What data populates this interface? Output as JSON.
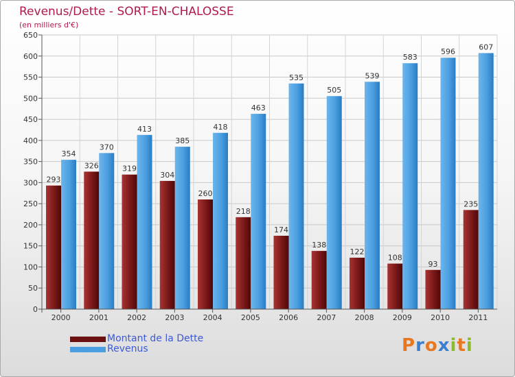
{
  "title": "Revenus/Dette - SORT-EN-CHALOSSE",
  "subtitle": "(en milliers d'€)",
  "colors": {
    "debt": "#7a1818",
    "revenue": "#4a9fe0",
    "title": "#b01a4a",
    "legend_text": "#3c5ad8"
  },
  "legend": [
    {
      "label": "Montant de la Dette",
      "color": "#6b1010"
    },
    {
      "label": "Revenus",
      "color": "#4a9fe0"
    }
  ],
  "logo": {
    "letters": [
      "P",
      "r",
      "o",
      "x",
      "i",
      "t",
      "i"
    ],
    "colors": [
      "#e87722",
      "#3a7fd0",
      "#e87722",
      "#3a7fd0",
      "#8bbb2b",
      "#e87722",
      "#8bbb2b"
    ]
  },
  "chart_data": {
    "type": "bar",
    "categories": [
      "2000",
      "2001",
      "2002",
      "2003",
      "2004",
      "2005",
      "2006",
      "2007",
      "2008",
      "2009",
      "2010",
      "2011"
    ],
    "series": [
      {
        "name": "Montant de la Dette",
        "values": [
          293,
          326,
          319,
          304,
          260,
          218,
          174,
          138,
          122,
          108,
          93,
          235
        ]
      },
      {
        "name": "Revenus",
        "values": [
          354,
          370,
          413,
          385,
          418,
          463,
          535,
          505,
          539,
          583,
          596,
          607
        ]
      }
    ],
    "ylim": [
      0,
      650
    ],
    "yticks": [
      0,
      50,
      100,
      150,
      200,
      250,
      300,
      350,
      400,
      450,
      500,
      550,
      600,
      650
    ],
    "grid": true,
    "legend_position": "bottom-left"
  }
}
